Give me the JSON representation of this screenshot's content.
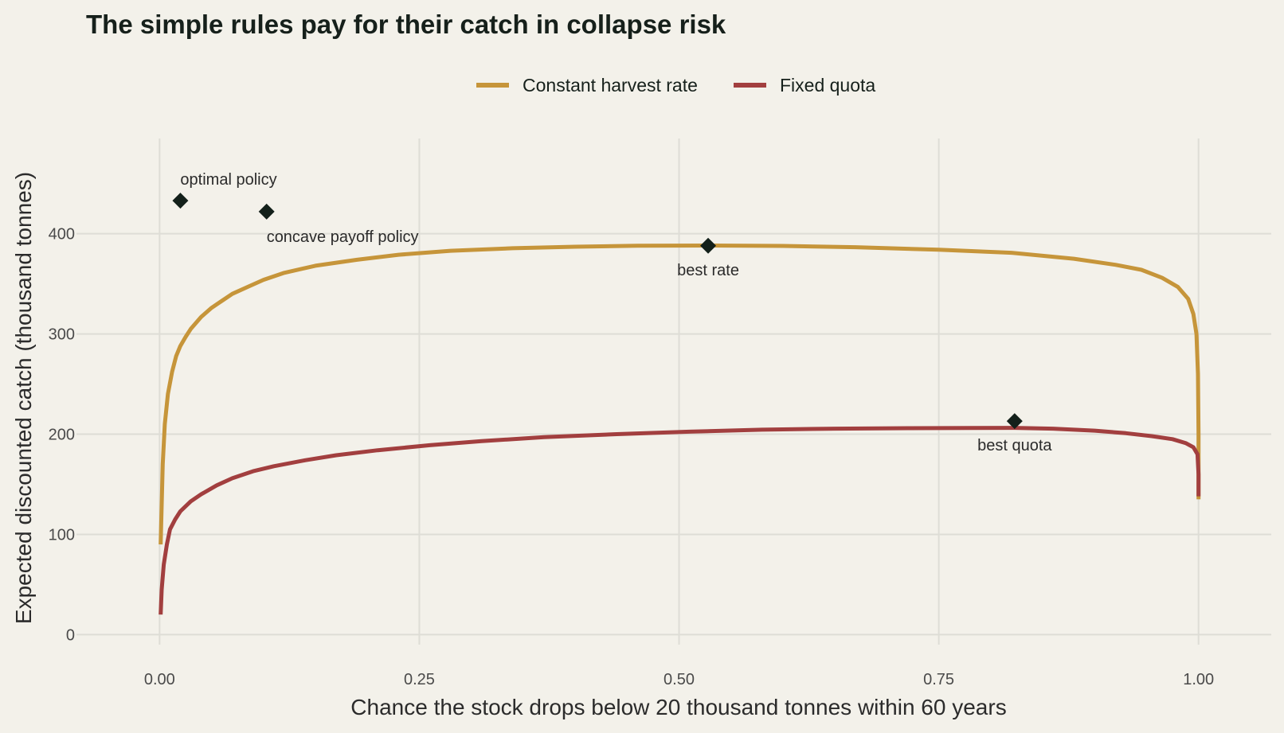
{
  "chart_data": {
    "type": "line",
    "title": "The simple rules pay for their catch in collapse risk",
    "xlabel": "Chance the stock drops below 20 thousand tonnes within 60 years",
    "ylabel": "Expected discounted catch (thousand tonnes)",
    "xlim": [
      -0.08,
      1.07
    ],
    "ylim": [
      -10,
      495
    ],
    "x_ticks": [
      0,
      0.25,
      0.5,
      0.75,
      1.0
    ],
    "x_tick_labels": [
      "0.00",
      "0.25",
      "0.50",
      "0.75",
      "1.00"
    ],
    "y_ticks": [
      0,
      100,
      200,
      300,
      400
    ],
    "y_tick_labels": [
      "0",
      "100",
      "200",
      "300",
      "400"
    ],
    "grid": true,
    "legend_position": "top-center",
    "series": [
      {
        "name": "Constant harvest rate",
        "color": "#c6953a",
        "x": [
          0.001,
          0.002,
          0.003,
          0.005,
          0.008,
          0.012,
          0.016,
          0.02,
          0.025,
          0.03,
          0.035,
          0.04,
          0.05,
          0.06,
          0.07,
          0.085,
          0.1,
          0.12,
          0.15,
          0.19,
          0.23,
          0.28,
          0.34,
          0.4,
          0.46,
          0.53,
          0.6,
          0.67,
          0.75,
          0.82,
          0.88,
          0.92,
          0.945,
          0.965,
          0.98,
          0.99,
          0.995,
          0.998,
          0.9995,
          1.0,
          1.0,
          1.0
        ],
        "y": [
          90,
          130,
          170,
          210,
          240,
          262,
          278,
          288,
          297,
          305,
          311,
          317,
          326,
          333,
          340,
          347,
          354,
          361,
          368,
          374,
          379,
          383,
          385.5,
          387,
          388,
          388.2,
          387.8,
          386.5,
          384,
          381,
          375,
          369,
          364,
          356,
          347,
          335,
          320,
          300,
          260,
          200,
          160,
          135
        ]
      },
      {
        "name": "Fixed quota",
        "color": "#a23f3f",
        "x": [
          0.001,
          0.002,
          0.004,
          0.007,
          0.01,
          0.015,
          0.02,
          0.03,
          0.04,
          0.055,
          0.07,
          0.09,
          0.11,
          0.14,
          0.17,
          0.21,
          0.26,
          0.31,
          0.37,
          0.44,
          0.51,
          0.58,
          0.65,
          0.72,
          0.78,
          0.823,
          0.86,
          0.9,
          0.93,
          0.955,
          0.975,
          0.988,
          0.995,
          0.999,
          1.0,
          1.0
        ],
        "y": [
          20,
          45,
          70,
          90,
          105,
          115,
          123,
          133,
          140,
          149,
          156,
          163,
          168,
          174,
          179,
          184,
          189,
          193,
          197,
          200,
          202.5,
          204.5,
          205.5,
          206,
          206.2,
          206.3,
          205.5,
          203.5,
          201,
          198,
          195,
          191,
          187,
          180,
          160,
          138
        ]
      }
    ],
    "annotations": [
      {
        "label": "optimal policy",
        "x": 0.02,
        "y": 433,
        "text_position": "above"
      },
      {
        "label": "concave payoff policy",
        "x": 0.103,
        "y": 422,
        "text_position": "below"
      },
      {
        "label": "best rate",
        "x": 0.528,
        "y": 388,
        "text_position": "below"
      },
      {
        "label": "best quota",
        "x": 0.823,
        "y": 213,
        "text_position": "below"
      }
    ],
    "marker_color": "#13201a"
  }
}
